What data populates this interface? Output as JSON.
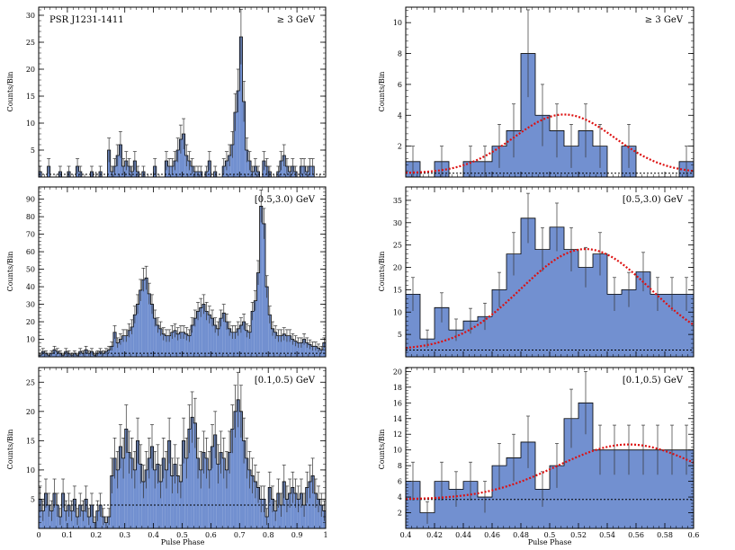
{
  "figure": {
    "pulsar_label": "PSR J1231-1411",
    "xlabel": "Pulse Phase",
    "ylabel": "Counts/Bin"
  },
  "colors": {
    "fill": "#7290d0",
    "stroke": "#000000",
    "fit": "#dd1111",
    "background": "#000000"
  },
  "chart_data": [
    {
      "type": "histogram",
      "panel": "left-top",
      "energy_label": "≥ 3 GeV",
      "show_pulsar": true,
      "xlim": [
        0,
        1
      ],
      "ylim": [
        0,
        31.5
      ],
      "xticks": [],
      "yticks": [
        5,
        10,
        15,
        20,
        25,
        30
      ],
      "background_level": 0.5,
      "bins": 100,
      "counts": [
        1,
        0,
        0,
        2,
        0,
        0,
        0,
        1,
        0,
        0,
        1,
        0,
        0,
        2,
        1,
        0,
        0,
        0,
        1,
        0,
        0,
        1,
        0,
        0,
        5,
        1,
        2,
        4,
        6,
        2,
        3,
        2,
        1,
        3,
        1,
        0,
        1,
        0,
        0,
        0,
        2,
        0,
        0,
        0,
        3,
        2,
        2,
        3,
        5,
        7,
        8,
        4,
        3,
        2,
        1,
        1,
        1,
        0,
        1,
        3,
        0,
        1,
        0,
        0,
        2,
        3,
        4,
        6,
        12,
        16,
        26,
        14,
        5,
        3,
        1,
        2,
        1,
        0,
        3,
        2,
        1,
        0,
        0,
        1,
        3,
        4,
        2,
        1,
        2,
        1,
        0,
        2,
        2,
        1,
        2,
        2,
        0,
        0,
        0,
        0
      ]
    },
    {
      "type": "histogram",
      "panel": "left-middle",
      "energy_label": "[0.5,3.0) GeV",
      "show_pulsar": false,
      "xlim": [
        0,
        1
      ],
      "ylim": [
        0,
        97
      ],
      "xticks": [],
      "yticks": [
        10,
        20,
        30,
        40,
        50,
        60,
        70,
        80,
        90
      ],
      "background_level": 2,
      "bins": 100,
      "counts": [
        1,
        3,
        2,
        1,
        2,
        4,
        3,
        2,
        1,
        3,
        2,
        1,
        2,
        1,
        3,
        2,
        4,
        2,
        3,
        1,
        2,
        3,
        2,
        3,
        4,
        6,
        14,
        8,
        10,
        12,
        12,
        15,
        17,
        24,
        30,
        38,
        44,
        45,
        36,
        30,
        22,
        18,
        16,
        13,
        12,
        12,
        14,
        15,
        13,
        14,
        14,
        13,
        12,
        18,
        22,
        26,
        28,
        30,
        26,
        24,
        22,
        18,
        16,
        22,
        25,
        20,
        16,
        14,
        14,
        16,
        18,
        20,
        15,
        14,
        26,
        32,
        48,
        86,
        76,
        40,
        24,
        16,
        14,
        12,
        12,
        13,
        12,
        12,
        10,
        9,
        8,
        8,
        10,
        8,
        7,
        6,
        6,
        5,
        4,
        8
      ]
    },
    {
      "type": "histogram",
      "panel": "left-bottom",
      "energy_label": "[0.1,0.5) GeV",
      "show_pulsar": false,
      "xlim": [
        0,
        1
      ],
      "ylim": [
        0,
        27.5
      ],
      "xticks": [
        "0",
        "0.1",
        "0.2",
        "0.3",
        "0.4",
        "0.5",
        "0.6",
        "0.7",
        "0.8",
        "0.9",
        "1"
      ],
      "yticks": [
        5,
        10,
        15,
        20,
        25
      ],
      "background_level": 4,
      "bins": 100,
      "counts": [
        5,
        3,
        6,
        4,
        3,
        6,
        4,
        2,
        6,
        3,
        4,
        3,
        5,
        2,
        4,
        3,
        5,
        2,
        4,
        1,
        3,
        4,
        2,
        1,
        2,
        9,
        12,
        10,
        14,
        12,
        17,
        13,
        12,
        10,
        15,
        11,
        8,
        10,
        12,
        14,
        10,
        11,
        8,
        12,
        10,
        15,
        9,
        11,
        9,
        8,
        15,
        12,
        17,
        19,
        18,
        12,
        10,
        13,
        12,
        10,
        14,
        16,
        11,
        13,
        12,
        10,
        13,
        17,
        20,
        22,
        20,
        15,
        12,
        10,
        9,
        8,
        7,
        5,
        5,
        2,
        7,
        5,
        3,
        6,
        4,
        8,
        5,
        6,
        7,
        6,
        5,
        6,
        4,
        7,
        8,
        9,
        6,
        5,
        4,
        3
      ]
    },
    {
      "type": "histogram",
      "panel": "right-top",
      "energy_label": "≥ 3 GeV",
      "show_pulsar": false,
      "xlim": [
        0.4,
        0.6
      ],
      "ylim": [
        0,
        11
      ],
      "xticks": [],
      "yticks": [
        2,
        4,
        6,
        8,
        10
      ],
      "background_level": 0.25,
      "bins": 20,
      "counts": [
        1,
        0,
        1,
        0,
        1,
        1,
        2,
        3,
        8,
        4,
        3,
        2,
        3,
        2,
        0,
        2,
        0,
        0,
        0,
        1
      ],
      "fit": {
        "amplitude": 3.8,
        "mean": 0.51,
        "sigma": 0.035
      }
    },
    {
      "type": "histogram",
      "panel": "right-middle",
      "energy_label": "[0.5,3.0) GeV",
      "show_pulsar": false,
      "xlim": [
        0.4,
        0.6
      ],
      "ylim": [
        0,
        38
      ],
      "xticks": [],
      "yticks": [
        5,
        10,
        15,
        20,
        25,
        30,
        35
      ],
      "background_level": 1.5,
      "bins": 20,
      "counts": [
        14,
        4,
        11,
        6,
        8,
        9,
        15,
        23,
        31,
        24,
        29,
        24,
        20,
        23,
        14,
        15,
        19,
        14,
        14,
        14
      ],
      "fit": {
        "amplitude": 22.6,
        "mean": 0.525,
        "sigma": 0.045
      }
    },
    {
      "type": "histogram",
      "panel": "right-bottom",
      "energy_label": "[0.1,0.5) GeV",
      "show_pulsar": false,
      "xlim": [
        0.4,
        0.6
      ],
      "ylim": [
        0,
        20.5
      ],
      "xticks": [
        "0.4",
        "0.42",
        "0.44",
        "0.46",
        "0.48",
        "0.5",
        "0.52",
        "0.54",
        "0.56",
        "0.58",
        "0.6"
      ],
      "yticks": [
        2,
        4,
        6,
        8,
        10,
        12,
        14,
        16,
        18,
        20
      ],
      "background_level": 3.7,
      "bins": 20,
      "counts": [
        6,
        2,
        6,
        5,
        6,
        4,
        8,
        9,
        11,
        5,
        8,
        14,
        16,
        10,
        10,
        10,
        10,
        10,
        10,
        10
      ],
      "fit": {
        "amplitude": 7.0,
        "mean": 0.555,
        "sigma": 0.05
      }
    }
  ]
}
